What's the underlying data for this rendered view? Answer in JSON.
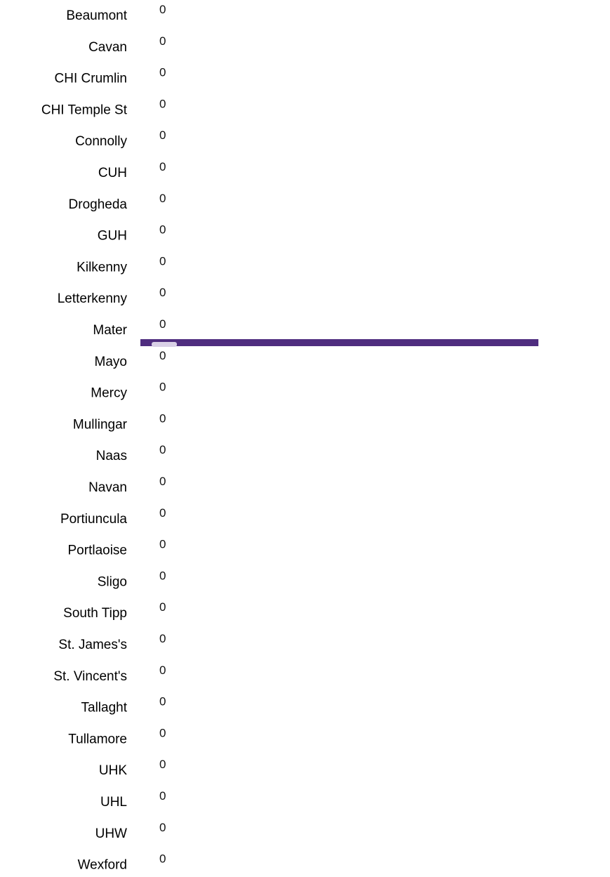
{
  "chart_data": {
    "type": "bar",
    "orientation": "horizontal",
    "categories": [
      "Beaumont",
      "Cavan",
      "CHI Crumlin",
      "CHI Temple St",
      "Connolly",
      "CUH",
      "Drogheda",
      "GUH",
      "Kilkenny",
      "Letterkenny",
      "Mater",
      "Mayo",
      "Mercy",
      "Mullingar",
      "Naas",
      "Navan",
      "Portiuncula",
      "Portlaoise",
      "Sligo",
      "South Tipp",
      "St. James's",
      "St. Vincent's",
      "Tallaght",
      "Tullamore",
      "UHK",
      "UHL",
      "UHW",
      "Wexford"
    ],
    "values": [
      0,
      0,
      0,
      0,
      0,
      0,
      0,
      0,
      0,
      0,
      0,
      0,
      0,
      0,
      0,
      0,
      0,
      0,
      0,
      0,
      0,
      0,
      0,
      0,
      0,
      0,
      0,
      0
    ],
    "value_labels": [
      "0",
      "0",
      "0",
      "0",
      "0",
      "0",
      "0",
      "0",
      "0",
      "0",
      "0",
      "0",
      "0",
      "0",
      "0",
      "0",
      "0",
      "0",
      "0",
      "0",
      "0",
      "0",
      "0",
      "0",
      "0",
      "0",
      "0",
      "0"
    ],
    "title": "",
    "xlabel": "",
    "ylabel": "",
    "grid": false,
    "legend": "none",
    "highlight_category": "Mater",
    "colors": {
      "highlight_line": "#4f2d7f",
      "marker_outline": "#d9d0e6",
      "text": "#000000"
    }
  }
}
